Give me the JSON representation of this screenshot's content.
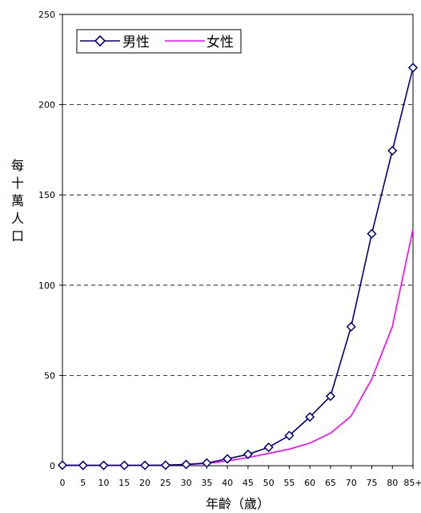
{
  "chart_data": {
    "type": "line",
    "title": "",
    "xlabel": "年齡（歲）",
    "ylabel": "每十萬人口",
    "x": [
      "0",
      "5",
      "10",
      "15",
      "20",
      "25",
      "30",
      "35",
      "40",
      "45",
      "50",
      "55",
      "60",
      "65",
      "70",
      "75",
      "80",
      "85+"
    ],
    "ylim": [
      0,
      250
    ],
    "yticks": [
      "0",
      "50",
      "100",
      "150",
      "200",
      "250"
    ],
    "grid": "horizontal dashed",
    "legend": "top-left",
    "series": [
      {
        "name": "男性",
        "color": "#000080",
        "marker": "diamond",
        "values": [
          0.3,
          0.2,
          0.2,
          0.2,
          0.2,
          0.3,
          0.7,
          1.5,
          3.8,
          6.3,
          10.2,
          16.7,
          27.0,
          38.5,
          77.0,
          128.5,
          174.5,
          220.5
        ]
      },
      {
        "name": "女性",
        "color": "#ff00ff",
        "marker": "none",
        "values": [
          0.2,
          0.2,
          0.2,
          0.2,
          0.2,
          0.3,
          0.6,
          1.2,
          2.6,
          4.5,
          6.8,
          9.2,
          12.5,
          18.0,
          27.5,
          48.0,
          77.0,
          131.0
        ]
      }
    ]
  }
}
